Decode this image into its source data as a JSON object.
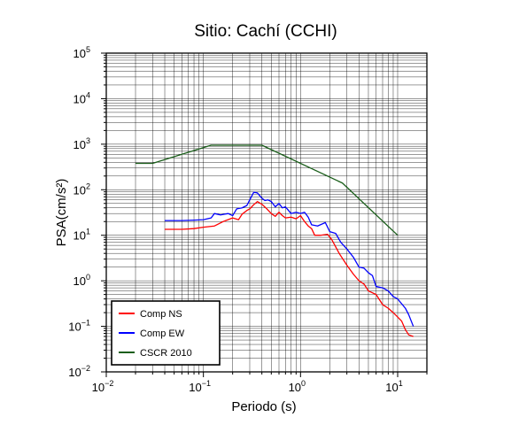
{
  "chart_data": {
    "type": "line",
    "title": "Sitio: Cachí (CCHI)",
    "xlabel": "Periodo (s)",
    "ylabel": "PSA(cm/s²)",
    "x_scale": "log",
    "y_scale": "log",
    "xlim": [
      0.01,
      20
    ],
    "ylim": [
      0.01,
      100000
    ],
    "grid": true,
    "legend_position": "bottom-left",
    "x_ticks": [
      {
        "value": 0.01,
        "base": "10",
        "exp": "−2"
      },
      {
        "value": 0.1,
        "base": "10",
        "exp": "−1"
      },
      {
        "value": 1,
        "base": "10",
        "exp": "0"
      },
      {
        "value": 10,
        "base": "10",
        "exp": "1"
      }
    ],
    "y_ticks": [
      {
        "value": 0.01,
        "base": "10",
        "exp": "−2"
      },
      {
        "value": 0.1,
        "base": "10",
        "exp": "−1"
      },
      {
        "value": 1,
        "base": "10",
        "exp": "0"
      },
      {
        "value": 10,
        "base": "10",
        "exp": "1"
      },
      {
        "value": 100,
        "base": "10",
        "exp": "2"
      },
      {
        "value": 1000,
        "base": "10",
        "exp": "3"
      },
      {
        "value": 10000,
        "base": "10",
        "exp": "4"
      },
      {
        "value": 100000,
        "base": "10",
        "exp": "5"
      }
    ],
    "series": [
      {
        "name": "Comp NS",
        "color": "#ff0000",
        "points": [
          [
            0.04,
            13.5
          ],
          [
            0.06,
            13.5
          ],
          [
            0.08,
            14
          ],
          [
            0.1,
            15
          ],
          [
            0.13,
            16
          ],
          [
            0.16,
            20
          ],
          [
            0.2,
            24
          ],
          [
            0.23,
            22
          ],
          [
            0.25,
            29
          ],
          [
            0.28,
            35
          ],
          [
            0.3,
            38
          ],
          [
            0.33,
            47
          ],
          [
            0.36,
            55
          ],
          [
            0.4,
            48
          ],
          [
            0.45,
            38
          ],
          [
            0.5,
            30
          ],
          [
            0.55,
            26
          ],
          [
            0.6,
            32
          ],
          [
            0.65,
            27
          ],
          [
            0.7,
            24
          ],
          [
            0.8,
            25
          ],
          [
            0.9,
            23
          ],
          [
            1.0,
            27
          ],
          [
            1.1,
            20
          ],
          [
            1.2,
            16
          ],
          [
            1.3,
            14
          ],
          [
            1.4,
            10
          ],
          [
            1.6,
            10
          ],
          [
            1.9,
            10.5
          ],
          [
            2.1,
            8
          ],
          [
            2.5,
            4
          ],
          [
            3.0,
            2.2
          ],
          [
            3.5,
            1.4
          ],
          [
            4.0,
            1.0
          ],
          [
            4.5,
            0.85
          ],
          [
            5.0,
            0.6
          ],
          [
            6.0,
            0.5
          ],
          [
            7.0,
            0.3
          ],
          [
            8.0,
            0.25
          ],
          [
            9.0,
            0.2
          ],
          [
            10,
            0.16
          ],
          [
            11,
            0.13
          ],
          [
            12,
            0.085
          ],
          [
            13,
            0.065
          ],
          [
            14.5,
            0.06
          ]
        ]
      },
      {
        "name": "Comp EW",
        "color": "#0000ff",
        "points": [
          [
            0.04,
            21
          ],
          [
            0.06,
            21
          ],
          [
            0.08,
            21.5
          ],
          [
            0.1,
            22
          ],
          [
            0.12,
            24
          ],
          [
            0.13,
            30
          ],
          [
            0.15,
            28
          ],
          [
            0.18,
            30
          ],
          [
            0.2,
            27
          ],
          [
            0.22,
            38
          ],
          [
            0.25,
            40
          ],
          [
            0.28,
            45
          ],
          [
            0.3,
            60
          ],
          [
            0.33,
            88
          ],
          [
            0.36,
            85
          ],
          [
            0.4,
            65
          ],
          [
            0.43,
            58
          ],
          [
            0.46,
            60
          ],
          [
            0.5,
            55
          ],
          [
            0.55,
            42
          ],
          [
            0.6,
            50
          ],
          [
            0.65,
            40
          ],
          [
            0.7,
            42
          ],
          [
            0.8,
            30
          ],
          [
            0.9,
            32
          ],
          [
            1.0,
            30
          ],
          [
            1.1,
            32
          ],
          [
            1.2,
            25
          ],
          [
            1.3,
            17
          ],
          [
            1.5,
            16
          ],
          [
            1.8,
            19
          ],
          [
            2.0,
            12
          ],
          [
            2.3,
            11
          ],
          [
            2.6,
            7
          ],
          [
            3.0,
            5
          ],
          [
            3.5,
            3.3
          ],
          [
            4.0,
            2.0
          ],
          [
            4.5,
            1.9
          ],
          [
            5.0,
            1.5
          ],
          [
            5.5,
            1.3
          ],
          [
            6.0,
            0.75
          ],
          [
            7.0,
            0.7
          ],
          [
            8.0,
            0.6
          ],
          [
            9.0,
            0.45
          ],
          [
            10,
            0.4
          ],
          [
            12,
            0.25
          ],
          [
            13,
            0.18
          ],
          [
            14.5,
            0.1
          ]
        ]
      },
      {
        "name": "CSCR 2010",
        "color": "#1a5e1a",
        "points": [
          [
            0.02,
            380
          ],
          [
            0.03,
            380
          ],
          [
            0.12,
            950
          ],
          [
            0.4,
            950
          ],
          [
            2.7,
            140
          ],
          [
            10,
            10
          ]
        ]
      }
    ]
  }
}
